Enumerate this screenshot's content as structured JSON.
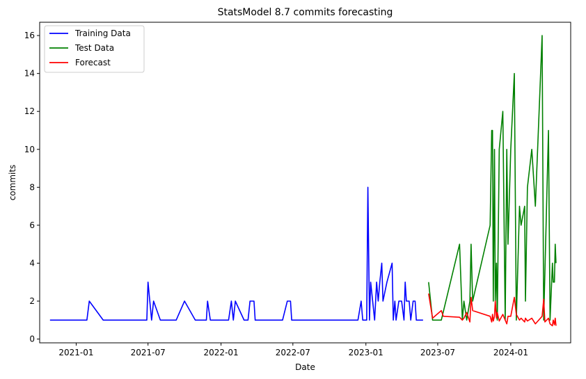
{
  "chart_data": {
    "type": "line",
    "title": "StatsModel 8.7 commits forecasting",
    "xlabel": "Date",
    "ylabel": "commits",
    "xlim": [
      "2020-10-01",
      "2024-05-31"
    ],
    "ylim": [
      -0.2,
      16.7
    ],
    "x_ticks": [
      "2021-01-01",
      "2021-07-01",
      "2022-01-01",
      "2022-07-01",
      "2023-01-01",
      "2023-07-01",
      "2024-01-01"
    ],
    "x_tick_labels": [
      "2021-01",
      "2021-07",
      "2022-01",
      "2022-07",
      "2023-01",
      "2023-07",
      "2024-01"
    ],
    "y_ticks": [
      0,
      2,
      4,
      6,
      8,
      10,
      12,
      14,
      16
    ],
    "y_tick_labels": [
      "0",
      "2",
      "4",
      "6",
      "8",
      "10",
      "12",
      "14",
      "16"
    ],
    "grid": false,
    "legend_position": "top-left",
    "series": [
      {
        "name": "Training Data",
        "color": "#0000ff",
        "points": [
          [
            "2020-10-27",
            1
          ],
          [
            "2021-01-28",
            1
          ],
          [
            "2021-02-03",
            2
          ],
          [
            "2021-03-10",
            1
          ],
          [
            "2021-06-28",
            1
          ],
          [
            "2021-07-01",
            3
          ],
          [
            "2021-07-10",
            1
          ],
          [
            "2021-07-15",
            2
          ],
          [
            "2021-08-01",
            1
          ],
          [
            "2021-09-10",
            1
          ],
          [
            "2021-10-01",
            2
          ],
          [
            "2021-10-28",
            1
          ],
          [
            "2021-11-25",
            1
          ],
          [
            "2021-11-28",
            2
          ],
          [
            "2021-12-05",
            1
          ],
          [
            "2022-01-20",
            1
          ],
          [
            "2022-01-27",
            2
          ],
          [
            "2022-02-01",
            1
          ],
          [
            "2022-02-06",
            2
          ],
          [
            "2022-02-28",
            1
          ],
          [
            "2022-03-10",
            1
          ],
          [
            "2022-03-15",
            2
          ],
          [
            "2022-03-25",
            2
          ],
          [
            "2022-03-28",
            1
          ],
          [
            "2022-06-05",
            1
          ],
          [
            "2022-06-17",
            2
          ],
          [
            "2022-06-25",
            2
          ],
          [
            "2022-06-28",
            1
          ],
          [
            "2022-12-12",
            1
          ],
          [
            "2022-12-20",
            2
          ],
          [
            "2022-12-24",
            1
          ],
          [
            "2023-01-03",
            1
          ],
          [
            "2023-01-06",
            8
          ],
          [
            "2023-01-10",
            1
          ],
          [
            "2023-01-13",
            3
          ],
          [
            "2023-01-18",
            2
          ],
          [
            "2023-01-23",
            1
          ],
          [
            "2023-01-28",
            3
          ],
          [
            "2023-02-01",
            2
          ],
          [
            "2023-02-05",
            3
          ],
          [
            "2023-02-10",
            4
          ],
          [
            "2023-02-13",
            2
          ],
          [
            "2023-02-18",
            2.5
          ],
          [
            "2023-02-23",
            3
          ],
          [
            "2023-03-08",
            4
          ],
          [
            "2023-03-11",
            1
          ],
          [
            "2023-03-15",
            2
          ],
          [
            "2023-03-18",
            1
          ],
          [
            "2023-03-25",
            2
          ],
          [
            "2023-04-01",
            2
          ],
          [
            "2023-04-07",
            1
          ],
          [
            "2023-04-10",
            3
          ],
          [
            "2023-04-13",
            2
          ],
          [
            "2023-04-20",
            2
          ],
          [
            "2023-04-24",
            1
          ],
          [
            "2023-04-30",
            2
          ],
          [
            "2023-05-05",
            2
          ],
          [
            "2023-05-08",
            1
          ],
          [
            "2023-05-25",
            1
          ]
        ]
      },
      {
        "name": "Test Data",
        "color": "#008000",
        "points": [
          [
            "2023-06-08",
            3
          ],
          [
            "2023-06-18",
            1
          ],
          [
            "2023-07-10",
            1
          ],
          [
            "2023-08-25",
            5
          ],
          [
            "2023-09-01",
            1
          ],
          [
            "2023-09-05",
            2
          ],
          [
            "2023-09-12",
            1
          ],
          [
            "2023-09-20",
            2
          ],
          [
            "2023-09-23",
            5
          ],
          [
            "2023-09-27",
            2
          ],
          [
            "2023-11-10",
            6
          ],
          [
            "2023-11-14",
            11
          ],
          [
            "2023-11-16",
            11
          ],
          [
            "2023-11-18",
            2
          ],
          [
            "2023-11-21",
            10
          ],
          [
            "2023-11-23",
            2
          ],
          [
            "2023-11-26",
            4
          ],
          [
            "2023-11-28",
            1
          ],
          [
            "2023-12-03",
            10
          ],
          [
            "2023-12-12",
            12
          ],
          [
            "2023-12-18",
            1
          ],
          [
            "2023-12-22",
            10
          ],
          [
            "2023-12-25",
            5
          ],
          [
            "2024-01-01",
            10
          ],
          [
            "2024-01-10",
            14
          ],
          [
            "2024-01-15",
            1
          ],
          [
            "2024-01-23",
            7
          ],
          [
            "2024-01-27",
            6
          ],
          [
            "2024-02-05",
            7
          ],
          [
            "2024-02-07",
            2
          ],
          [
            "2024-02-12",
            8
          ],
          [
            "2024-02-23",
            10
          ],
          [
            "2024-03-03",
            7
          ],
          [
            "2024-03-20",
            16
          ],
          [
            "2024-03-24",
            1
          ],
          [
            "2024-04-05",
            11
          ],
          [
            "2024-04-09",
            1
          ],
          [
            "2024-04-15",
            4
          ],
          [
            "2024-04-17",
            3
          ],
          [
            "2024-04-20",
            3
          ],
          [
            "2024-04-22",
            5
          ],
          [
            "2024-04-24",
            4
          ]
        ]
      },
      {
        "name": "Forecast",
        "color": "#ff0000",
        "points": [
          [
            "2023-06-08",
            2.4
          ],
          [
            "2023-06-18",
            1.1
          ],
          [
            "2023-07-10",
            1.5
          ],
          [
            "2023-07-15",
            1.2
          ],
          [
            "2023-08-25",
            1.15
          ],
          [
            "2023-09-01",
            1.0
          ],
          [
            "2023-09-05",
            1.1
          ],
          [
            "2023-09-12",
            1.4
          ],
          [
            "2023-09-20",
            0.9
          ],
          [
            "2023-09-23",
            2.2
          ],
          [
            "2023-09-27",
            1.5
          ],
          [
            "2023-11-10",
            1.2
          ],
          [
            "2023-11-14",
            0.9
          ],
          [
            "2023-11-16",
            1.3
          ],
          [
            "2023-11-18",
            0.95
          ],
          [
            "2023-11-21",
            1.2
          ],
          [
            "2023-11-23",
            2.0
          ],
          [
            "2023-11-26",
            1.1
          ],
          [
            "2023-11-28",
            1.4
          ],
          [
            "2023-12-03",
            0.95
          ],
          [
            "2023-12-12",
            1.3
          ],
          [
            "2023-12-18",
            1.0
          ],
          [
            "2023-12-22",
            0.8
          ],
          [
            "2023-12-25",
            1.2
          ],
          [
            "2024-01-01",
            1.2
          ],
          [
            "2024-01-10",
            2.2
          ],
          [
            "2024-01-15",
            1.3
          ],
          [
            "2024-01-23",
            1.0
          ],
          [
            "2024-01-27",
            1.1
          ],
          [
            "2024-02-05",
            0.9
          ],
          [
            "2024-02-07",
            1.1
          ],
          [
            "2024-02-12",
            0.95
          ],
          [
            "2024-02-23",
            1.1
          ],
          [
            "2024-03-03",
            0.8
          ],
          [
            "2024-03-20",
            1.2
          ],
          [
            "2024-03-24",
            2.1
          ],
          [
            "2024-03-27",
            0.9
          ],
          [
            "2024-04-05",
            1.1
          ],
          [
            "2024-04-09",
            0.8
          ],
          [
            "2024-04-15",
            0.7
          ],
          [
            "2024-04-17",
            1.0
          ],
          [
            "2024-04-20",
            0.75
          ],
          [
            "2024-04-22",
            1.1
          ],
          [
            "2024-04-24",
            0.7
          ]
        ]
      }
    ]
  }
}
